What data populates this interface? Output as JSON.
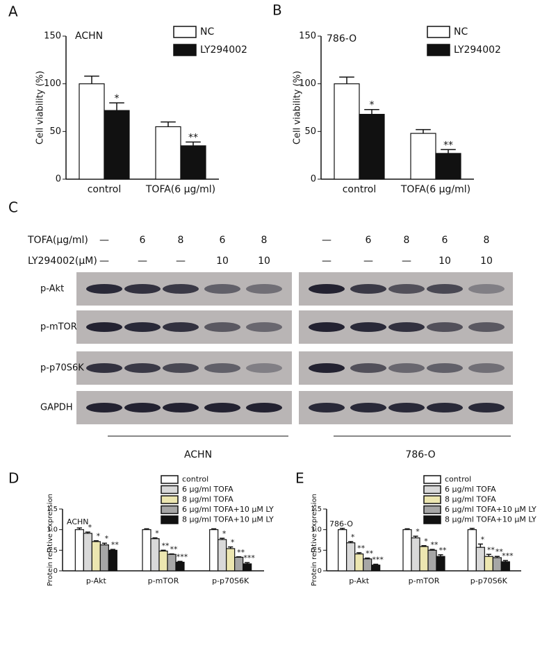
{
  "chart_data": [
    {
      "type": "bar",
      "panel": "A",
      "annotation": "ACHN",
      "y_label": "Cell viability (%)",
      "categories": [
        "control",
        "TOFA(6 μg/ml)"
      ],
      "series": [
        {
          "name": "NC",
          "color": "#ffffff",
          "values": [
            100,
            55
          ],
          "errors": [
            8,
            5
          ],
          "sig": [
            null,
            null
          ]
        },
        {
          "name": "LY294002",
          "color": "#111111",
          "values": [
            72,
            35
          ],
          "errors": [
            8,
            4
          ],
          "sig": [
            "*",
            "**"
          ]
        }
      ],
      "ylim": [
        0,
        150
      ],
      "yticks": [
        0,
        50,
        100,
        150
      ]
    },
    {
      "type": "bar",
      "panel": "B",
      "annotation": "786-O",
      "y_label": "Cell viability (%)",
      "categories": [
        "control",
        "TOFA(6 μg/ml)"
      ],
      "series": [
        {
          "name": "NC",
          "color": "#ffffff",
          "values": [
            100,
            48
          ],
          "errors": [
            7,
            4
          ],
          "sig": [
            null,
            null
          ]
        },
        {
          "name": "LY294002",
          "color": "#111111",
          "values": [
            68,
            27
          ],
          "errors": [
            5,
            4
          ],
          "sig": [
            "*",
            "**"
          ]
        }
      ],
      "ylim": [
        0,
        150
      ],
      "yticks": [
        0,
        50,
        100,
        150
      ]
    },
    {
      "type": "bar",
      "panel": "D",
      "annotation": "ACHN",
      "y_label": "Protein relative expression",
      "categories": [
        "p-Akt",
        "p-mTOR",
        "p-p70S6K"
      ],
      "series": [
        {
          "name": "control",
          "color": "#ffffff",
          "values": [
            1.0,
            1.0,
            1.0
          ],
          "errors": [
            0.04,
            0.02,
            0.02
          ],
          "sig": [
            null,
            null,
            null
          ]
        },
        {
          "name": "6 μg/ml TOFA",
          "color": "#d9d9d9",
          "values": [
            0.91,
            0.78,
            0.76
          ],
          "errors": [
            0.03,
            0.02,
            0.03
          ],
          "sig": [
            "*",
            "*",
            "*"
          ]
        },
        {
          "name": "8 μg/ml TOFA",
          "color": "#ece6b0",
          "values": [
            0.71,
            0.48,
            0.54
          ],
          "errors": [
            0.02,
            0.02,
            0.04
          ],
          "sig": [
            "*",
            "**",
            "*"
          ]
        },
        {
          "name": "6 μg/ml TOFA+10 μM LY",
          "color": "#a6a6a6",
          "values": [
            0.63,
            0.4,
            0.33
          ],
          "errors": [
            0.04,
            0.01,
            0.01
          ],
          "sig": [
            "*",
            "**",
            "**"
          ]
        },
        {
          "name": "8 μg/ml TOFA+10 μM LY",
          "color": "#111111",
          "values": [
            0.5,
            0.21,
            0.17
          ],
          "errors": [
            0.02,
            0.02,
            0.03
          ],
          "sig": [
            "**",
            "***",
            "***"
          ]
        }
      ],
      "ylim": [
        0,
        1.5
      ],
      "yticks": [
        0,
        0.5,
        {
          "value": 1,
          "label": "1.0"
        },
        1.5
      ]
    },
    {
      "type": "bar",
      "panel": "E",
      "annotation": "786-O",
      "y_label": "Protein relative expression",
      "categories": [
        "p-Akt",
        "p-mTOR",
        "p-p70S6K"
      ],
      "series": [
        {
          "name": "control",
          "color": "#ffffff",
          "values": [
            1.0,
            1.0,
            1.0
          ],
          "errors": [
            0.03,
            0.02,
            0.03
          ],
          "sig": [
            null,
            null,
            null
          ]
        },
        {
          "name": "6 μg/ml TOFA",
          "color": "#d9d9d9",
          "values": [
            0.68,
            0.8,
            0.57
          ],
          "errors": [
            0.03,
            0.04,
            0.08
          ],
          "sig": [
            "*",
            "*",
            "*"
          ]
        },
        {
          "name": "8 μg/ml TOFA",
          "color": "#ece6b0",
          "values": [
            0.41,
            0.59,
            0.35
          ],
          "errors": [
            0.03,
            0.02,
            0.05
          ],
          "sig": [
            "**",
            "*",
            "**"
          ]
        },
        {
          "name": "6 μg/ml TOFA+10 μM LY",
          "color": "#a6a6a6",
          "values": [
            0.29,
            0.5,
            0.32
          ],
          "errors": [
            0.02,
            0.02,
            0.03
          ],
          "sig": [
            "**",
            "**",
            "**"
          ]
        },
        {
          "name": "8 μg/ml TOFA+10 μM LY",
          "color": "#111111",
          "values": [
            0.14,
            0.35,
            0.22
          ],
          "errors": [
            0.02,
            0.04,
            0.03
          ],
          "sig": [
            "***",
            "**",
            "***"
          ]
        }
      ],
      "ylim": [
        0,
        1.5
      ],
      "yticks": [
        0,
        0.5,
        {
          "value": 1,
          "label": "1.0"
        },
        1.5
      ]
    }
  ],
  "blot": {
    "panel": "C",
    "tofa_label": "TOFA(μg/ml)",
    "ly_label": "LY294002(μM)",
    "tofa": [
      "—",
      "6",
      "8",
      "6",
      "8"
    ],
    "ly": [
      "—",
      "—",
      "—",
      "10",
      "10"
    ],
    "rows": [
      "p-Akt",
      "p-mTOR",
      "p-p70S6K",
      "GAPDH"
    ],
    "cell_lines": [
      "ACHN",
      "786-O"
    ]
  }
}
